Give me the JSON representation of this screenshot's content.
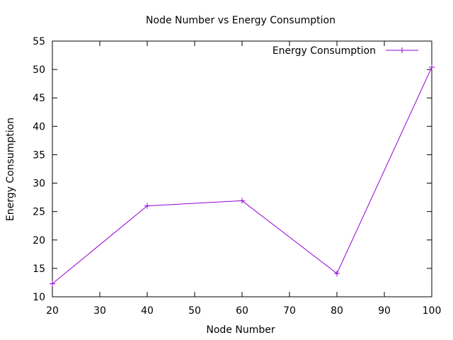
{
  "chart_data": {
    "type": "line",
    "title": "Node Number vs Energy Consumption",
    "xlabel": "Node Number",
    "ylabel": "Energy Consumption",
    "xlim": [
      20,
      100
    ],
    "ylim": [
      10,
      55
    ],
    "xticks": [
      20,
      30,
      40,
      50,
      60,
      70,
      80,
      90,
      100
    ],
    "yticks": [
      10,
      15,
      20,
      25,
      30,
      35,
      40,
      45,
      50,
      55
    ],
    "grid": false,
    "legend_position": "top-right",
    "series": [
      {
        "name": "Energy Consumption",
        "color": "#9400d3",
        "marker": "plus",
        "x": [
          20,
          40,
          60,
          80,
          100
        ],
        "y": [
          12.3,
          26.0,
          26.9,
          14.1,
          50.4
        ]
      }
    ]
  }
}
